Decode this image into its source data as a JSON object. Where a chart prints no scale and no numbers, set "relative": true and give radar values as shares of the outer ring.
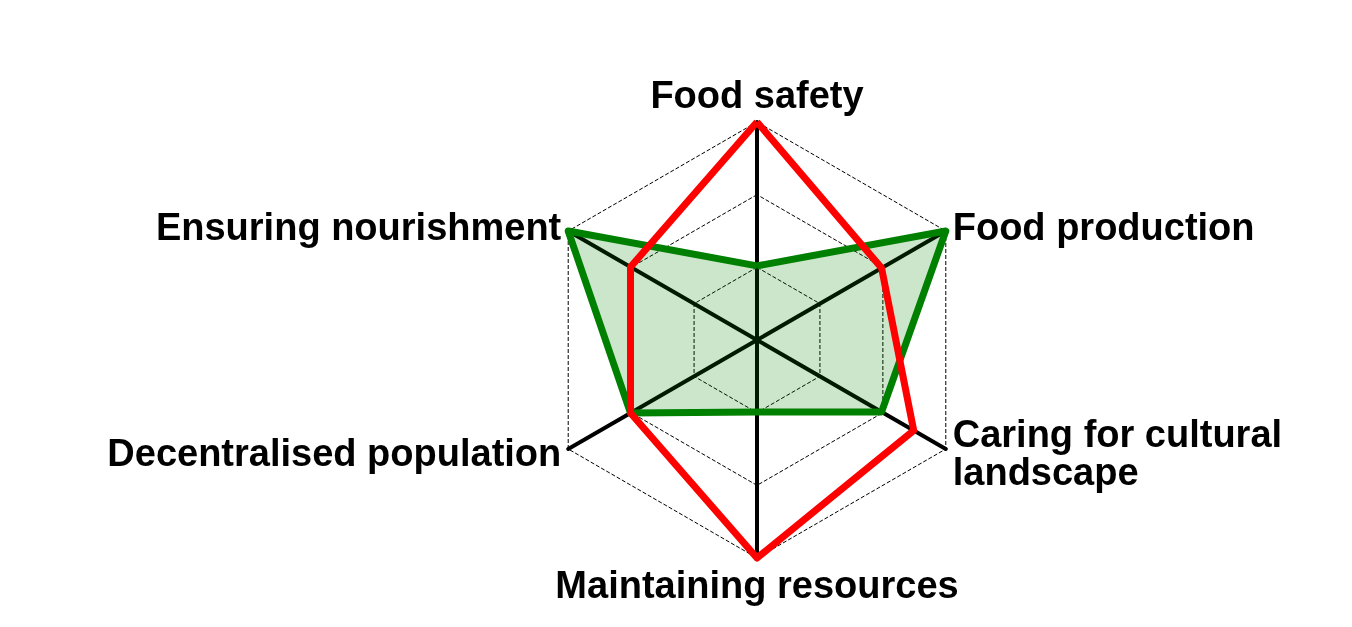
{
  "chart_data": {
    "type": "radar",
    "relative": true,
    "grid": true,
    "marker": "none",
    "line_style": "solid",
    "categories": [
      "Food safety",
      "Food production",
      "Caring for cultural landscape",
      "Maintaining resources",
      "Decentralised population",
      "Ensuring nourishment"
    ],
    "series": [
      {
        "type": "area",
        "color": "#008000",
        "values": [
          0.34,
          1,
          0.66,
          0.33,
          0.67,
          1
        ]
      },
      {
        "type": "radar",
        "color": "#ff0000",
        "values": [
          1,
          0.66,
          0.83,
          1,
          0.67,
          0.67
        ]
      }
    ]
  }
}
